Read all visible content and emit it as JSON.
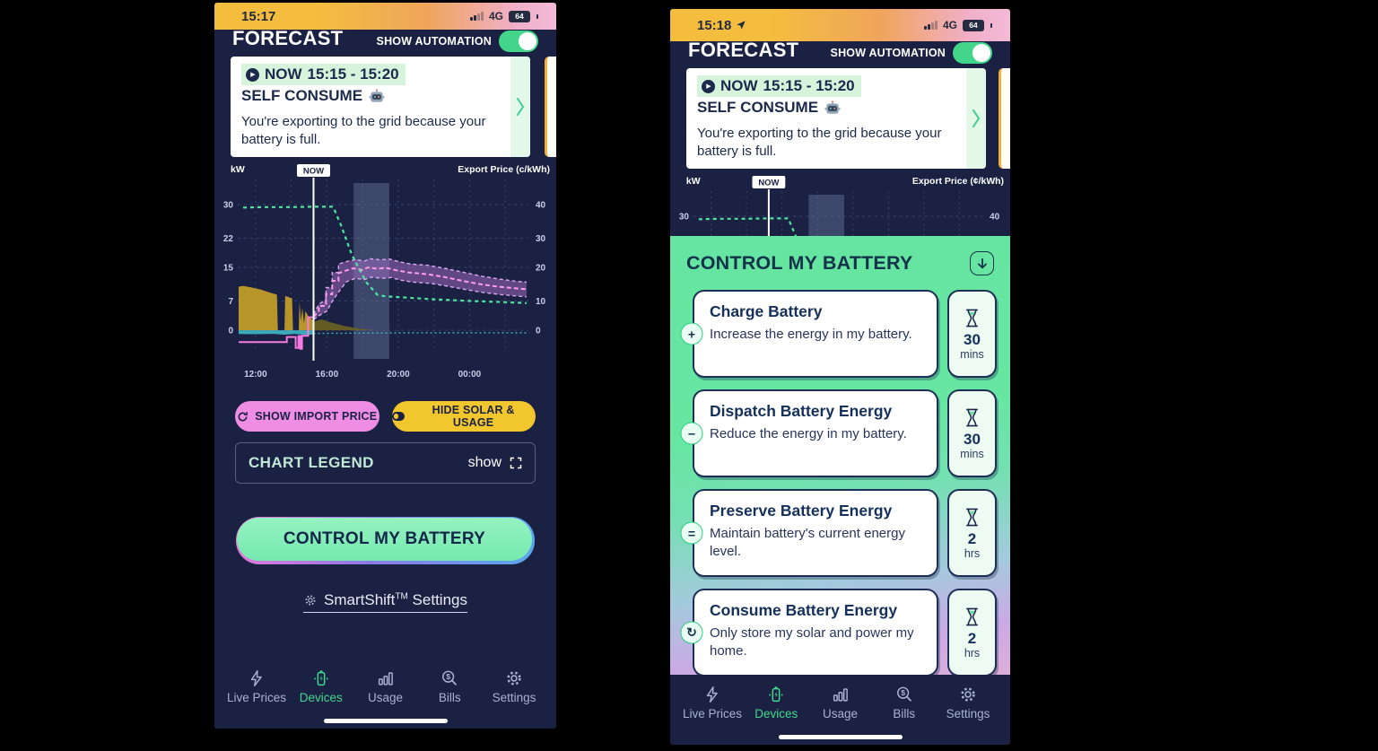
{
  "colors": {
    "accent_green": "#43d68b",
    "mint_panel": "#65e5a1",
    "pink_button": "#ef8de4",
    "yellow_button": "#f2c72d",
    "navy_bg": "#1b2142"
  },
  "left_phone": {
    "status": {
      "time": "15:17",
      "network": "4G",
      "battery": "64"
    },
    "header": {
      "title": "FORECAST",
      "toggle_label": "SHOW AUTOMATION",
      "toggle_state": "on"
    },
    "now_card": {
      "badge": "NOW",
      "time_range": "15:15 - 15:20",
      "mode": "SELF CONSUME",
      "description": "You're exporting to the grid because your battery is full."
    },
    "chart": {
      "right_axis_label": "Export Price (c/kWh)"
    },
    "buttons": {
      "import_label": "SHOW IMPORT PRICE",
      "solar_label": "HIDE SOLAR & USAGE"
    },
    "legend": {
      "title": "CHART LEGEND",
      "action": "show"
    },
    "control_button_label": "CONTROL MY BATTERY",
    "smartshift": {
      "brand": "SmartShift",
      "tm": "TM",
      "suffix": " Settings"
    }
  },
  "right_phone": {
    "status": {
      "time": "15:18",
      "network": "4G",
      "battery": "64"
    },
    "header": {
      "title": "FORECAST",
      "toggle_label": "SHOW AUTOMATION",
      "toggle_state": "on"
    },
    "now_card": {
      "badge": "NOW",
      "time_range": "15:15 - 15:20",
      "mode": "SELF CONSUME",
      "description": "You're exporting to the grid because your battery is full."
    },
    "chart": {
      "right_axis_label": "Export Price (¢/kWh)"
    },
    "panel": {
      "title": "CONTROL MY BATTERY",
      "actions": [
        {
          "symbol": "+",
          "title": "Charge Battery",
          "description": "Increase the energy in my battery.",
          "duration": "30",
          "unit": "mins"
        },
        {
          "symbol": "−",
          "title": "Dispatch Battery Energy",
          "description": "Reduce the energy in my battery.",
          "duration": "30",
          "unit": "mins"
        },
        {
          "symbol": "=",
          "title": "Preserve Battery Energy",
          "description": "Maintain battery's current energy level.",
          "duration": "2",
          "unit": "hrs"
        },
        {
          "symbol": "↻",
          "title": "Consume Battery Energy",
          "description": "Only store my solar and power my home.",
          "duration": "2",
          "unit": "hrs"
        }
      ]
    }
  },
  "nav": {
    "items": [
      {
        "label": "Live Prices",
        "icon": "bolt",
        "active": false
      },
      {
        "label": "Devices",
        "icon": "battery",
        "active": true
      },
      {
        "label": "Usage",
        "icon": "chart",
        "active": false
      },
      {
        "label": "Bills",
        "icon": "bills",
        "active": false
      },
      {
        "label": "Settings",
        "icon": "gear",
        "active": false
      }
    ]
  },
  "chart_data": {
    "type": "line",
    "title": "Battery / price forecast",
    "left_axis": {
      "label": "kW",
      "ticks": [
        30,
        22,
        15,
        7,
        0
      ]
    },
    "right_axis": {
      "label": "Export Price (c/kWh)",
      "ticks": [
        40,
        30,
        20,
        10,
        0
      ]
    },
    "x_tick_labels": [
      "12:00",
      "16:00",
      "20:00",
      "00:00"
    ],
    "x_tick_hours": [
      12,
      16,
      20,
      24
    ],
    "vgrid_hours": [
      12,
      14,
      16,
      18,
      20,
      22,
      24,
      26
    ],
    "x_range": [
      11,
      27.3
    ],
    "y_range": [
      -7.9,
      36
    ],
    "units": "kW (left axis); right axis c/kWh = kW × 4/3",
    "now_label": "NOW",
    "now_x": 15.25,
    "shaded_band": [
      17.5,
      19.5
    ],
    "series": [
      {
        "name": "solar-actual",
        "type": "area",
        "color": "#c9a227",
        "opacity": 0.9,
        "points": [
          [
            11.05,
            10.4
          ],
          [
            11.3,
            10.6
          ],
          [
            11.8,
            10.2
          ],
          [
            12.3,
            9.7
          ],
          [
            12.8,
            9.0
          ],
          [
            13.2,
            8.5
          ],
          [
            13.25,
            0
          ],
          [
            13.62,
            0
          ],
          [
            13.66,
            8.2
          ],
          [
            14.05,
            7.6
          ],
          [
            14.1,
            0
          ],
          [
            14.42,
            0
          ],
          [
            14.46,
            6.8
          ],
          [
            14.55,
            2.2
          ],
          [
            14.62,
            5.4
          ],
          [
            14.72,
            1.6
          ],
          [
            14.8,
            4.6
          ],
          [
            14.95,
            3.4
          ],
          [
            15.1,
            2.8
          ],
          [
            15.3,
            2.1
          ]
        ]
      },
      {
        "name": "solar-forecast",
        "type": "area",
        "color": "#6b6322",
        "opacity": 0.9,
        "points": [
          [
            15.3,
            2.1
          ],
          [
            15.7,
            2.6
          ],
          [
            16.2,
            1.9
          ],
          [
            17.0,
            1.0
          ],
          [
            17.8,
            0.4
          ],
          [
            18.6,
            0.05
          ]
        ]
      },
      {
        "name": "usage-actual",
        "type": "area",
        "color": "#3fb8c8",
        "opacity": 0.9,
        "points": [
          [
            11.05,
            -0.9
          ],
          [
            12,
            -0.95
          ],
          [
            13,
            -0.85
          ],
          [
            13.6,
            -1.05
          ],
          [
            14.2,
            -0.9
          ],
          [
            14.8,
            -1.1
          ],
          [
            15.25,
            -1.0
          ]
        ]
      },
      {
        "name": "usage-forecast",
        "type": "line",
        "color": "#3fb8c8",
        "dashed": true,
        "dash": "2 3",
        "width": 1.4,
        "points": [
          [
            15.25,
            -0.75
          ],
          [
            17,
            -0.7
          ],
          [
            19,
            -0.65
          ],
          [
            21,
            -0.6
          ],
          [
            24,
            -0.6
          ],
          [
            27.2,
            -0.6
          ]
        ]
      },
      {
        "name": "export-price-band",
        "type": "band",
        "color": "#a86fc8",
        "edge": "#d9a8ef",
        "upper": [
          [
            15.25,
            3.8
          ],
          [
            15.55,
            6.2
          ],
          [
            15.95,
            7.4
          ],
          [
            15.95,
            10.2
          ],
          [
            16.3,
            10.2
          ],
          [
            16.3,
            13.8
          ],
          [
            16.65,
            13.8
          ],
          [
            16.65,
            15.8
          ],
          [
            17.1,
            16.4
          ],
          [
            17.6,
            16.9
          ],
          [
            18.1,
            16.5
          ],
          [
            18.4,
            17.1
          ],
          [
            19,
            16.8
          ],
          [
            19.5,
            17.0
          ],
          [
            20,
            16.4
          ],
          [
            20.7,
            15.8
          ],
          [
            21.7,
            15.5
          ],
          [
            22.7,
            14.7
          ],
          [
            23.7,
            13.8
          ],
          [
            24.7,
            12.9
          ],
          [
            25.7,
            12.2
          ],
          [
            26.6,
            11.7
          ],
          [
            27.2,
            11.5
          ]
        ],
        "lower": [
          [
            15.25,
            2.6
          ],
          [
            15.6,
            3.6
          ],
          [
            16,
            4.6
          ],
          [
            16.3,
            6.9
          ],
          [
            16.7,
            9.4
          ],
          [
            17.1,
            11.6
          ],
          [
            17.6,
            12.4
          ],
          [
            18.1,
            12.1
          ],
          [
            18.5,
            12.7
          ],
          [
            19.1,
            12.4
          ],
          [
            19.6,
            12.6
          ],
          [
            20.1,
            12.0
          ],
          [
            20.8,
            11.5
          ],
          [
            21.8,
            11.2
          ],
          [
            22.8,
            10.5
          ],
          [
            23.8,
            9.7
          ],
          [
            24.8,
            9.0
          ],
          [
            25.8,
            8.5
          ],
          [
            26.6,
            8.2
          ],
          [
            27.2,
            8.0
          ]
        ]
      },
      {
        "name": "export-price-forecast",
        "type": "line",
        "color": "#ff9ce6",
        "dashed": true,
        "dash": "5 3",
        "width": 2,
        "points": [
          [
            15.25,
            3.2
          ],
          [
            15.55,
            4.6
          ],
          [
            15.55,
            5.8
          ],
          [
            15.95,
            5.8
          ],
          [
            15.95,
            8.6
          ],
          [
            16.3,
            8.6
          ],
          [
            16.3,
            11.8
          ],
          [
            16.65,
            11.8
          ],
          [
            16.65,
            13.6
          ],
          [
            17.1,
            14.3
          ],
          [
            17.5,
            14.8
          ],
          [
            18.0,
            14.4
          ],
          [
            18.3,
            15.0
          ],
          [
            18.8,
            14.7
          ],
          [
            19.3,
            14.9
          ],
          [
            19.9,
            14.3
          ],
          [
            20.6,
            13.8
          ],
          [
            21.6,
            13.4
          ],
          [
            22.6,
            12.7
          ],
          [
            23.6,
            11.8
          ],
          [
            24.6,
            11.0
          ],
          [
            25.6,
            10.4
          ],
          [
            26.6,
            10.0
          ],
          [
            27.2,
            9.8
          ]
        ]
      },
      {
        "name": "export-price-actual",
        "type": "line",
        "color": "#f77be0",
        "width": 2,
        "points": [
          [
            11.05,
            -2.8
          ],
          [
            13.75,
            -2.8
          ],
          [
            13.75,
            -1.6
          ],
          [
            14.25,
            -1.6
          ],
          [
            14.25,
            -4.2
          ],
          [
            14.4,
            -4.2
          ],
          [
            14.4,
            -1.4
          ],
          [
            14.5,
            -1.4
          ],
          [
            14.5,
            -4.4
          ],
          [
            14.6,
            -4.4
          ],
          [
            14.6,
            -1.3
          ],
          [
            14.95,
            -1.3
          ],
          [
            14.95,
            3.1
          ],
          [
            15.25,
            3.1
          ]
        ]
      },
      {
        "name": "feed-in-tariff",
        "type": "line",
        "color": "#4ee6a0",
        "dashed": true,
        "dash": "4 4",
        "width": 2.2,
        "points": [
          [
            11.3,
            29.3
          ],
          [
            12.5,
            29.4
          ],
          [
            14,
            29.4
          ],
          [
            15.25,
            29.5
          ],
          [
            16.35,
            29.5
          ],
          [
            16.8,
            25
          ],
          [
            17.4,
            18
          ],
          [
            18.2,
            11.5
          ],
          [
            18.85,
            8.4
          ],
          [
            19.3,
            8.1
          ],
          [
            20.5,
            7.8
          ],
          [
            22,
            7.4
          ],
          [
            24,
            7.0
          ],
          [
            26,
            6.7
          ],
          [
            27.2,
            6.5
          ]
        ]
      }
    ]
  }
}
